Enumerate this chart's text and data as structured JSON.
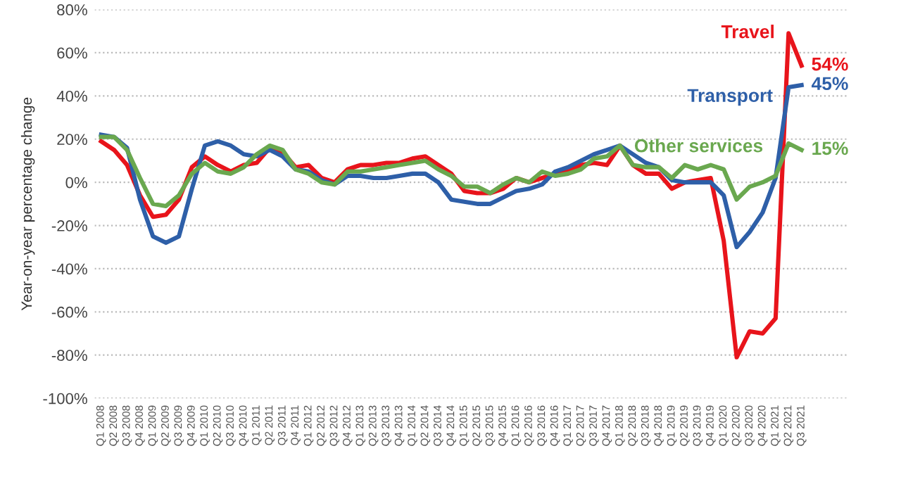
{
  "chart_data": {
    "type": "line",
    "ylabel": "Year-on-year percentage change",
    "categories": [
      "Q1 2008",
      "Q2 2008",
      "Q3 2008",
      "Q4 2008",
      "Q1 2009",
      "Q2 2009",
      "Q3 2009",
      "Q4 2009",
      "Q1 2010",
      "Q2 2010",
      "Q3 2010",
      "Q4 2010",
      "Q1 2011",
      "Q2 2011",
      "Q3 2011",
      "Q4 2011",
      "Q1 2012",
      "Q2 2012",
      "Q3 2012",
      "Q4 2012",
      "Q1 2013",
      "Q2 2013",
      "Q3 2013",
      "Q4 2013",
      "Q1 2014",
      "Q2 2014",
      "Q3 2014",
      "Q4 2014",
      "Q1 2015",
      "Q2 2015",
      "Q3 2015",
      "Q4 2015",
      "Q1 2016",
      "Q2 2016",
      "Q3 2016",
      "Q4 2016",
      "Q1 2017",
      "Q2 2017",
      "Q3 2017",
      "Q4 2017",
      "Q1 2018",
      "Q2 2018",
      "Q3 2018",
      "Q4 2018",
      "Q1 2019",
      "Q2 2019",
      "Q3 2019",
      "Q4 2019",
      "Q1 2020",
      "Q2 2020",
      "Q3 2020",
      "Q4 2020",
      "Q1 2021",
      "Q2 2021",
      "Q3 2021"
    ],
    "series": [
      {
        "name": "Travel",
        "color": "#e8141b",
        "values": [
          19,
          15,
          8,
          -6,
          -16,
          -15,
          -8,
          7,
          12,
          8,
          5,
          8,
          9,
          16,
          14,
          7,
          8,
          2,
          0,
          6,
          8,
          8,
          9,
          9,
          11,
          12,
          8,
          4,
          -4,
          -5,
          -5,
          -3,
          2,
          0,
          2,
          4,
          5,
          8,
          9,
          8,
          17,
          8,
          4,
          4,
          -3,
          0,
          1,
          2,
          -27,
          -81,
          -69,
          -70,
          -63,
          69,
          54
        ],
        "value_labels": [
          null,
          null,
          null,
          null,
          null,
          null,
          null,
          null,
          null,
          null,
          null,
          null,
          null,
          null,
          null,
          null,
          null,
          null,
          null,
          null,
          null,
          null,
          null,
          null,
          null,
          null,
          null,
          null,
          null,
          null,
          null,
          null,
          null,
          null,
          null,
          null,
          null,
          null,
          null,
          null,
          null,
          null,
          null,
          null,
          null,
          null,
          null,
          null,
          null,
          null,
          null,
          null,
          null,
          null,
          "54%"
        ]
      },
      {
        "name": "Transport",
        "color": "#2e5fa8",
        "values": [
          22,
          21,
          16,
          -8,
          -25,
          -28,
          -25,
          -3,
          17,
          19,
          17,
          13,
          12,
          15,
          12,
          6,
          5,
          1,
          -1,
          3,
          3,
          2,
          2,
          3,
          4,
          4,
          0,
          -8,
          -9,
          -10,
          -10,
          -7,
          -4,
          -3,
          -1,
          5,
          7,
          10,
          13,
          15,
          17,
          13,
          9,
          7,
          1,
          0,
          0,
          0,
          -6,
          -30,
          -23,
          -14,
          2,
          44,
          45
        ],
        "value_labels": [
          null,
          null,
          null,
          null,
          null,
          null,
          null,
          null,
          null,
          null,
          null,
          null,
          null,
          null,
          null,
          null,
          null,
          null,
          null,
          null,
          null,
          null,
          null,
          null,
          null,
          null,
          null,
          null,
          null,
          null,
          null,
          null,
          null,
          null,
          null,
          null,
          null,
          null,
          null,
          null,
          null,
          null,
          null,
          null,
          null,
          null,
          null,
          null,
          null,
          null,
          null,
          null,
          null,
          null,
          "45%"
        ]
      },
      {
        "name": "Other services",
        "color": "#6aa84f",
        "values": [
          21,
          21,
          15,
          2,
          -10,
          -11,
          -6,
          4,
          9,
          5,
          4,
          7,
          13,
          17,
          15,
          6,
          4,
          0,
          -1,
          5,
          5,
          6,
          7,
          8,
          9,
          10,
          6,
          3,
          -2,
          -2,
          -5,
          -1,
          2,
          0,
          5,
          3,
          4,
          6,
          11,
          12,
          17,
          8,
          7,
          7,
          2,
          8,
          6,
          8,
          6,
          -8,
          -2,
          0,
          3,
          18,
          15
        ],
        "value_labels": [
          null,
          null,
          null,
          null,
          null,
          null,
          null,
          null,
          null,
          null,
          null,
          null,
          null,
          null,
          null,
          null,
          null,
          null,
          null,
          null,
          null,
          null,
          null,
          null,
          null,
          null,
          null,
          null,
          null,
          null,
          null,
          null,
          null,
          null,
          null,
          null,
          null,
          null,
          null,
          null,
          null,
          null,
          null,
          null,
          null,
          null,
          null,
          null,
          null,
          null,
          null,
          null,
          null,
          null,
          "15%"
        ]
      }
    ],
    "ylim": [
      -100,
      80
    ],
    "yticks": [
      {
        "value": -100,
        "label": "-100%"
      },
      {
        "value": -80,
        "label": "-80%"
      },
      {
        "value": -60,
        "label": "-60%"
      },
      {
        "value": -40,
        "label": "-40%"
      },
      {
        "value": -20,
        "label": "-20%"
      },
      {
        "value": 0,
        "label": "0%"
      },
      {
        "value": 20,
        "label": "20%"
      },
      {
        "value": 40,
        "label": "40%"
      },
      {
        "value": 60,
        "label": "60%"
      },
      {
        "value": 80,
        "label": "80%"
      }
    ],
    "grid": "y",
    "legend": false,
    "marker": "none",
    "line_style": "solid"
  }
}
